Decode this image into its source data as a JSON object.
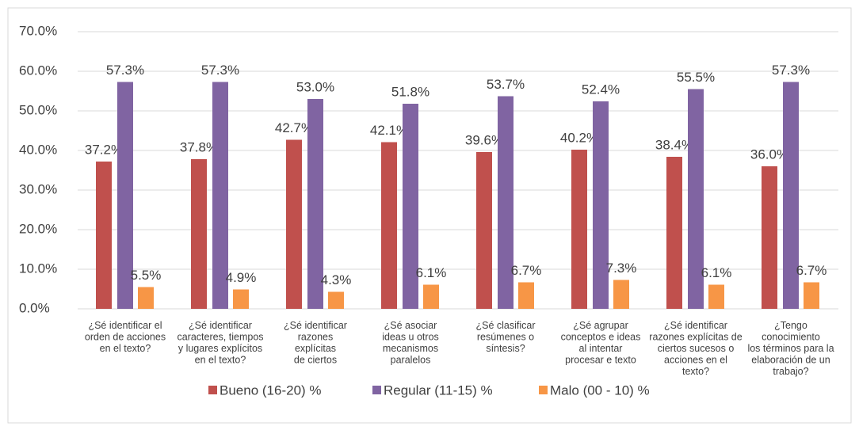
{
  "chart_data": {
    "type": "bar",
    "categories": [
      "¿Sé  identificar el\norden de acciones\nen el texto?",
      "¿Sé  identificar\ncaracteres, tiempos\ny lugares explícitos\nen el texto?",
      "¿Sé identificar\nrazones\nexplícitas\nde ciertos",
      "¿Sé asociar\nideas u otros\nmecanismos\nparalelos",
      "¿Sé clasificar\nresúmenes o\nsíntesis?",
      "¿Sé  agrupar\nconceptos e ideas\nal intentar\nprocesar e texto",
      "¿Sé identificar\nrazones explícitas de\nciertos sucesos o\nacciones en el\ntexto?",
      "¿Tengo\nconocimiento\nlos términos para la\nelaboración de un\ntrabajo?"
    ],
    "series": [
      {
        "name": "Bueno (16-20) %",
        "color": "#c0504d",
        "values": [
          37.2,
          37.8,
          42.7,
          42.1,
          39.6,
          40.2,
          38.4,
          36.0
        ],
        "value_labels": [
          "37.2%",
          "37.8%",
          "42.7%",
          "42.1%",
          "39.6%",
          "40.2%",
          "38.4%",
          "36.0%"
        ]
      },
      {
        "name": "Regular (11-15) %",
        "color": "#8064a2",
        "values": [
          57.3,
          57.3,
          53.0,
          51.8,
          53.7,
          52.4,
          55.5,
          57.3
        ],
        "value_labels": [
          "57.3%",
          "57.3%",
          "53.0%",
          "51.8%",
          "53.7%",
          "52.4%",
          "55.5%",
          "57.3%"
        ]
      },
      {
        "name": "Malo (00 - 10) %",
        "color": "#f79646",
        "values": [
          5.5,
          4.9,
          4.3,
          6.1,
          6.7,
          7.3,
          6.1,
          6.7
        ],
        "value_labels": [
          "5.5%",
          "4.9%",
          "4.3%",
          "6.1%",
          "6.7%",
          "7.3%",
          "6.1%",
          "6.7%"
        ]
      }
    ],
    "ylim": [
      0,
      70
    ],
    "yticks": [
      {
        "value": 0,
        "label": "0.0%"
      },
      {
        "value": 10,
        "label": "10.0%"
      },
      {
        "value": 20,
        "label": "20.0%"
      },
      {
        "value": 30,
        "label": "30.0%"
      },
      {
        "value": 40,
        "label": "40.0%"
      },
      {
        "value": 50,
        "label": "50.0%"
      },
      {
        "value": 60,
        "label": "60.0%"
      },
      {
        "value": 70,
        "label": "70.0%"
      }
    ],
    "grid": true,
    "legend": "bottom"
  }
}
